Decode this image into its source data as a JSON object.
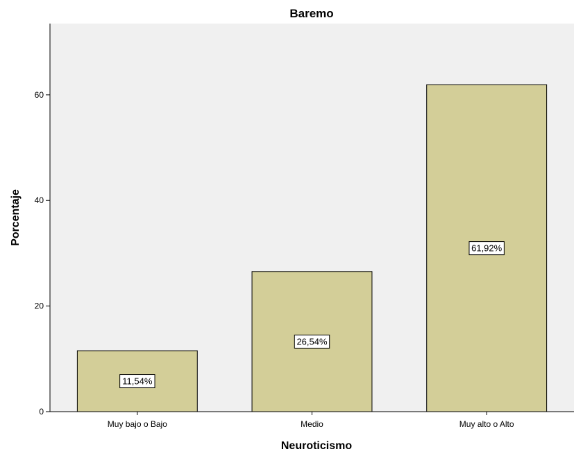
{
  "chart_data": {
    "type": "bar",
    "title": "Baremo",
    "xlabel": "Neuroticismo",
    "ylabel": "Porcentaje",
    "categories": [
      "Muy bajo o Bajo",
      "Medio",
      "Muy alto o Alto"
    ],
    "values": [
      11.54,
      26.54,
      61.92
    ],
    "data_labels": [
      "11,54%",
      "26,54%",
      "61,92%"
    ],
    "ylim": [
      0,
      73.5
    ],
    "yticks": [
      0,
      20,
      40,
      60
    ],
    "grid": false,
    "legend": "none",
    "colors": {
      "bar_fill": "#d3ce98",
      "bar_stroke": "#000000",
      "plot_background": "#f0f0f0",
      "page_background": "#ffffff"
    }
  }
}
